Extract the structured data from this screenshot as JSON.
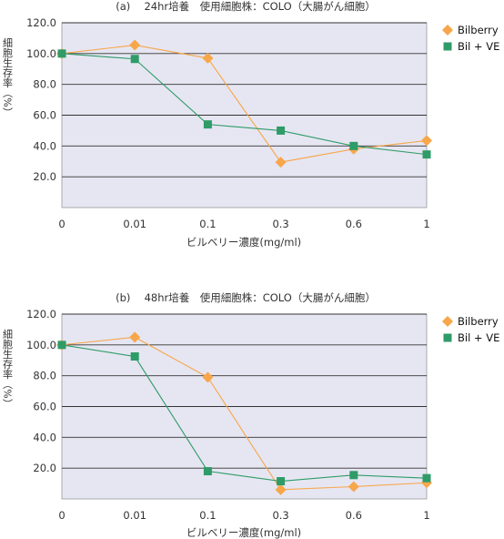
{
  "colors": {
    "plot_bg": "#e6e6f2",
    "grid": "#333333",
    "bilberry": "#f7a64a",
    "bil_ve": "#2f9b68",
    "text": "#333333"
  },
  "chart_data": [
    {
      "type": "line",
      "title": "(a)　 24hr培養　使用細胞株：COLO（大腸がん細胞）",
      "xlabel": "ビルベリー濃度(mg/ml)",
      "ylabel": "細胞生存率（%）",
      "categories": [
        "0",
        "0.01",
        "0.1",
        "0.3",
        "0.6",
        "1"
      ],
      "ylim": [
        0,
        120
      ],
      "yticks": [
        "20.0",
        "40.0",
        "60.0",
        "80.0",
        "100.0",
        "120.0"
      ],
      "grid": true,
      "legend_position": "right",
      "series": [
        {
          "name": "Bilberry",
          "marker": "diamond",
          "values": [
            100,
            105.5,
            97,
            29.5,
            38,
            43.5
          ]
        },
        {
          "name": "Bil + VE",
          "marker": "square",
          "values": [
            100,
            96.5,
            54,
            50,
            40,
            34.5
          ]
        }
      ]
    },
    {
      "type": "line",
      "title": "(b)　 48hr培養　使用細胞株：COLO（大腸がん細胞）",
      "xlabel": "ビルベリー濃度(mg/ml)",
      "ylabel": "細胞生存率（%）",
      "categories": [
        "0",
        "0.01",
        "0.1",
        "0.3",
        "0.6",
        "1"
      ],
      "ylim": [
        0,
        120
      ],
      "yticks": [
        "20.0",
        "40.0",
        "60.0",
        "80.0",
        "100.0",
        "120.0"
      ],
      "grid": true,
      "legend_position": "right",
      "series": [
        {
          "name": "Bilberry",
          "marker": "diamond",
          "values": [
            100,
            105,
            79,
            6,
            8,
            10.5
          ]
        },
        {
          "name": "Bil + VE",
          "marker": "square",
          "values": [
            100,
            92.5,
            18,
            11.5,
            15.5,
            13.5
          ]
        }
      ]
    }
  ]
}
